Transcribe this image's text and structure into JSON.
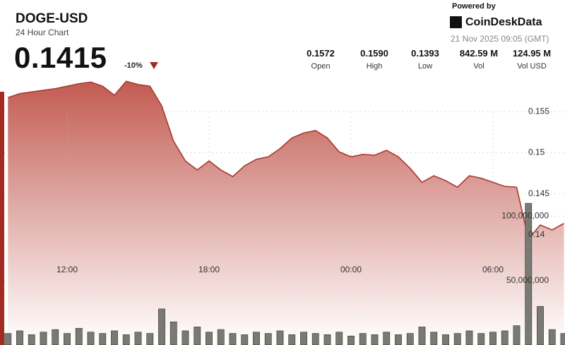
{
  "header": {
    "symbol": "DOGE-USD",
    "subtitle": "24 Hour Chart",
    "price": "0.1415",
    "change": "-10%",
    "powered_by": "Powered by",
    "brand": "CoinDeskData",
    "timestamp": "21 Nov 2025 09:05 (GMT)"
  },
  "stats": [
    {
      "value": "0.1572",
      "label": "Open"
    },
    {
      "value": "0.1590",
      "label": "High"
    },
    {
      "value": "0.1393",
      "label": "Low"
    },
    {
      "value": "842.59 M",
      "label": "Vol"
    },
    {
      "value": "124.95 M",
      "label": "Vol USD"
    }
  ],
  "chart_data": {
    "type": "area",
    "categories": [
      null,
      null,
      null,
      null,
      null,
      "12:00",
      null,
      null,
      null,
      null,
      null,
      null,
      null,
      null,
      null,
      null,
      null,
      "18:00",
      null,
      null,
      null,
      null,
      null,
      null,
      null,
      null,
      null,
      null,
      null,
      "00:00",
      null,
      null,
      null,
      null,
      null,
      null,
      null,
      null,
      null,
      null,
      null,
      "06:00",
      null,
      null,
      null,
      null,
      null,
      null
    ],
    "series": [
      {
        "type": "area",
        "color": "#a83a2f",
        "values": [
          0.1567,
          0.1572,
          0.1574,
          0.1576,
          0.1578,
          0.1581,
          0.1584,
          0.1586,
          0.1581,
          0.157,
          0.1587,
          0.1583,
          0.1581,
          0.1557,
          0.1514,
          0.149,
          0.1479,
          0.149,
          0.1479,
          0.1471,
          0.1484,
          0.1492,
          0.1495,
          0.1505,
          0.1518,
          0.1524,
          0.1527,
          0.1518,
          0.1501,
          0.1495,
          0.1498,
          0.1497,
          0.1503,
          0.1495,
          0.1481,
          0.1464,
          0.1472,
          0.1466,
          0.1458,
          0.1472,
          0.1469,
          0.1464,
          0.1459,
          0.1458,
          0.1395,
          0.1412,
          0.1406,
          0.1414
        ]
      },
      {
        "type": "bar",
        "axis": "y2",
        "color": "#7a7a74",
        "values": [
          9000000,
          11000000,
          8000000,
          10000000,
          12000000,
          9000000,
          13000000,
          10000000,
          9000000,
          11000000,
          8000000,
          10000000,
          9000000,
          28000000,
          18000000,
          11000000,
          14000000,
          10000000,
          12000000,
          9000000,
          8000000,
          10000000,
          9000000,
          11000000,
          8000000,
          10000000,
          9000000,
          8000000,
          10000000,
          7000000,
          9000000,
          8000000,
          10000000,
          8000000,
          9000000,
          14000000,
          10000000,
          8000000,
          9000000,
          11000000,
          9000000,
          10000000,
          11000000,
          15000000,
          110000000,
          30000000,
          12000000,
          9000000
        ]
      }
    ],
    "ylim": [
      0.1266,
      0.16
    ],
    "yticks": [
      0.14,
      0.145,
      0.15,
      0.155
    ],
    "y2lim": [
      0,
      213000000
    ],
    "y2ticks": [
      {
        "value": 50000000,
        "label": "50,000,000"
      },
      {
        "value": 100000000,
        "label": "100,000,000"
      }
    ],
    "grid": true
  }
}
